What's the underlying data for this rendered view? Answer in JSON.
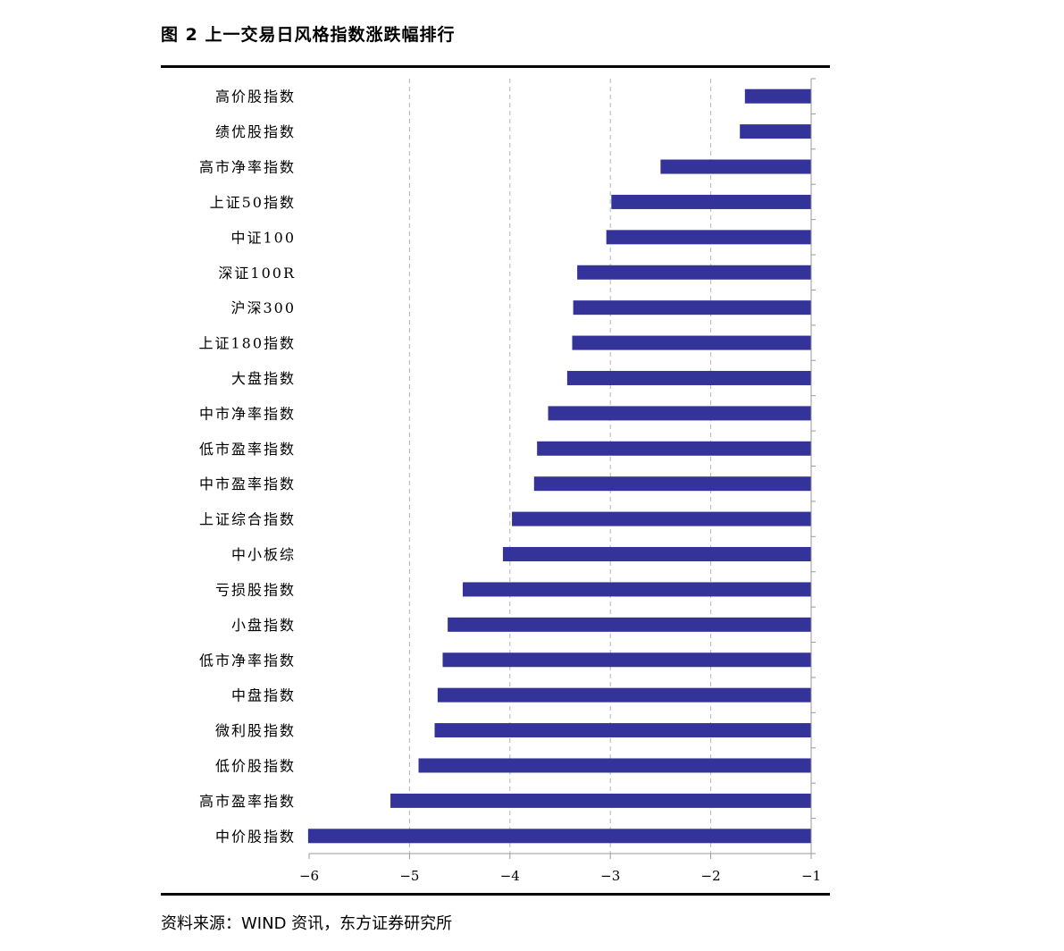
{
  "figure": {
    "title": "图 2 上一交易日风格指数涨跌幅排行",
    "source": "资料来源：WIND 资讯，东方证券研究所"
  },
  "chart_data": {
    "type": "bar",
    "orientation": "horizontal",
    "categories": [
      "高价股指数",
      "绩优股指数",
      "高市净率指数",
      "上证50指数",
      "中证100",
      "深证100R",
      "沪深300",
      "上证180指数",
      "大盘指数",
      "中市净率指数",
      "低市盈率指数",
      "中市盈率指数",
      "上证综合指数",
      "中小板综",
      "亏损股指数",
      "小盘指数",
      "低市净率指数",
      "中盘指数",
      "微利股指数",
      "低价股指数",
      "高市盈率指数",
      "中价股指数"
    ],
    "values": [
      -1.66,
      -1.71,
      -2.5,
      -2.99,
      -3.04,
      -3.33,
      -3.37,
      -3.38,
      -3.43,
      -3.62,
      -3.73,
      -3.76,
      -3.98,
      -4.07,
      -4.47,
      -4.62,
      -4.67,
      -4.72,
      -4.75,
      -4.91,
      -5.19,
      -6.01
    ],
    "xlim": [
      -6,
      -1
    ],
    "xticks": [
      -6,
      -5,
      -4,
      -3,
      -2,
      -1
    ],
    "tick_labels": [
      "−6",
      "−5",
      "−4",
      "−3",
      "−2",
      "−1"
    ],
    "bar_color": "#333399",
    "grid": "vertical dashed"
  }
}
